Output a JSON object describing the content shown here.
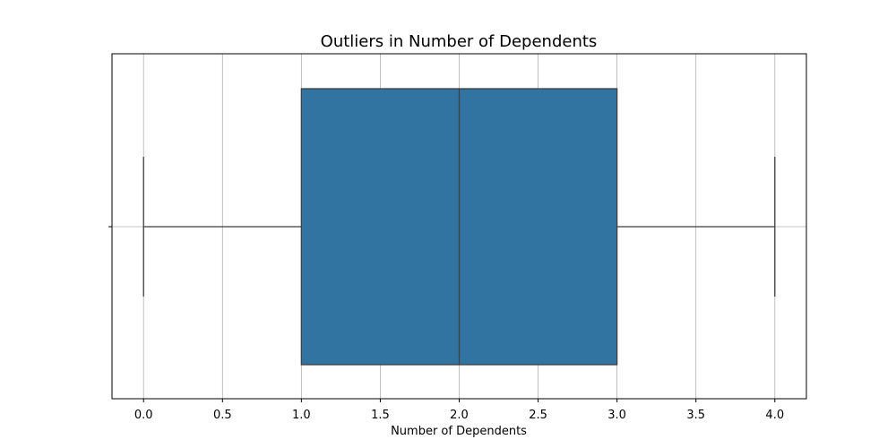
{
  "chart_data": {
    "type": "box",
    "title": "Outliers in Number of Dependents",
    "xlabel": "Number of Dependents",
    "ylabel": "",
    "xlim": [
      -0.2,
      4.2
    ],
    "x_ticks": [
      0.0,
      0.5,
      1.0,
      1.5,
      2.0,
      2.5,
      3.0,
      3.5,
      4.0
    ],
    "x_tick_labels": [
      "0.0",
      "0.5",
      "1.0",
      "1.5",
      "2.0",
      "2.5",
      "3.0",
      "3.5",
      "4.0"
    ],
    "grid": true,
    "orientation": "horizontal",
    "box": {
      "whisker_low": 0,
      "q1": 1,
      "median": 2,
      "q3": 3,
      "whisker_high": 4,
      "outliers": []
    },
    "colors": {
      "box_fill": "#3274a1",
      "box_edge": "#3f3f3f",
      "grid": "#b0b0b0",
      "frame": "#000000"
    }
  }
}
